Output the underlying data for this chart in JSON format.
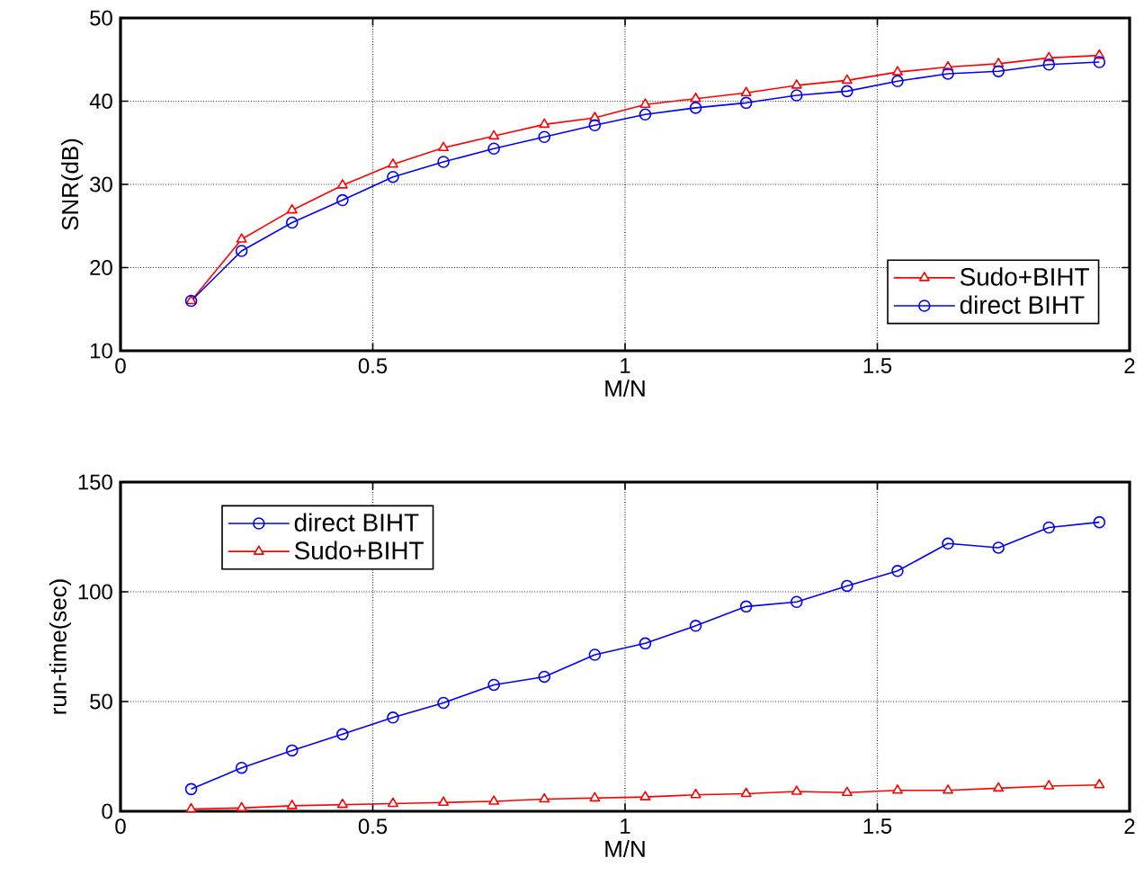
{
  "chart_data": [
    {
      "type": "line",
      "xlabel": "M/N",
      "ylabel": "SNR(dB)",
      "x": [
        0.14,
        0.24,
        0.34,
        0.44,
        0.54,
        0.64,
        0.74,
        0.84,
        0.94,
        1.04,
        1.14,
        1.24,
        1.34,
        1.44,
        1.54,
        1.64,
        1.74,
        1.84,
        1.94
      ],
      "series": [
        {
          "name": "Sudo+BIHT",
          "color": "#ff0000",
          "marker": "triangle",
          "values": [
            16.0,
            23.4,
            26.9,
            29.9,
            32.4,
            34.4,
            35.8,
            37.2,
            38.0,
            39.6,
            40.3,
            41.0,
            41.9,
            42.5,
            43.5,
            44.1,
            44.5,
            45.2,
            45.5
          ]
        },
        {
          "name": "direct BIHT",
          "color": "#0000ff",
          "marker": "circle",
          "values": [
            16.0,
            22.0,
            25.4,
            28.1,
            30.9,
            32.7,
            34.3,
            35.7,
            37.1,
            38.4,
            39.2,
            39.8,
            40.7,
            41.2,
            42.4,
            43.3,
            43.6,
            44.4,
            44.7
          ]
        }
      ],
      "xlim": [
        0,
        2
      ],
      "xticks": [
        0,
        0.5,
        1,
        1.5,
        2
      ],
      "ylim": [
        10,
        50
      ],
      "yticks": [
        10,
        20,
        30,
        40,
        50
      ],
      "grid": true,
      "legend": "bottom right",
      "line_style": "solid"
    },
    {
      "type": "line",
      "xlabel": "M/N",
      "ylabel": "run-time(sec)",
      "x": [
        0.14,
        0.24,
        0.34,
        0.44,
        0.54,
        0.64,
        0.74,
        0.84,
        0.94,
        1.04,
        1.14,
        1.24,
        1.34,
        1.44,
        1.54,
        1.64,
        1.74,
        1.84,
        1.94
      ],
      "series": [
        {
          "name": "direct BIHT",
          "color": "#0000ff",
          "marker": "circle",
          "values": [
            10.1,
            19.8,
            27.7,
            35.1,
            42.7,
            49.4,
            57.6,
            61.3,
            71.3,
            76.5,
            84.5,
            93.3,
            95.4,
            102.7,
            109.5,
            122.0,
            120.1,
            129.3,
            131.7
          ]
        },
        {
          "name": "Sudo+BIHT",
          "color": "#ff0000",
          "marker": "triangle",
          "values": [
            1.0,
            1.5,
            2.5,
            3.0,
            3.5,
            4.0,
            4.5,
            5.5,
            6.0,
            6.5,
            7.5,
            8.0,
            9.0,
            8.5,
            9.5,
            9.5,
            10.5,
            11.5,
            12.0
          ]
        }
      ],
      "xlim": [
        0,
        2
      ],
      "xticks": [
        0,
        0.5,
        1,
        1.5,
        2
      ],
      "ylim": [
        0,
        150
      ],
      "yticks": [
        0,
        50,
        100,
        150
      ],
      "grid": true,
      "legend": "top left",
      "line_style": "solid"
    }
  ]
}
